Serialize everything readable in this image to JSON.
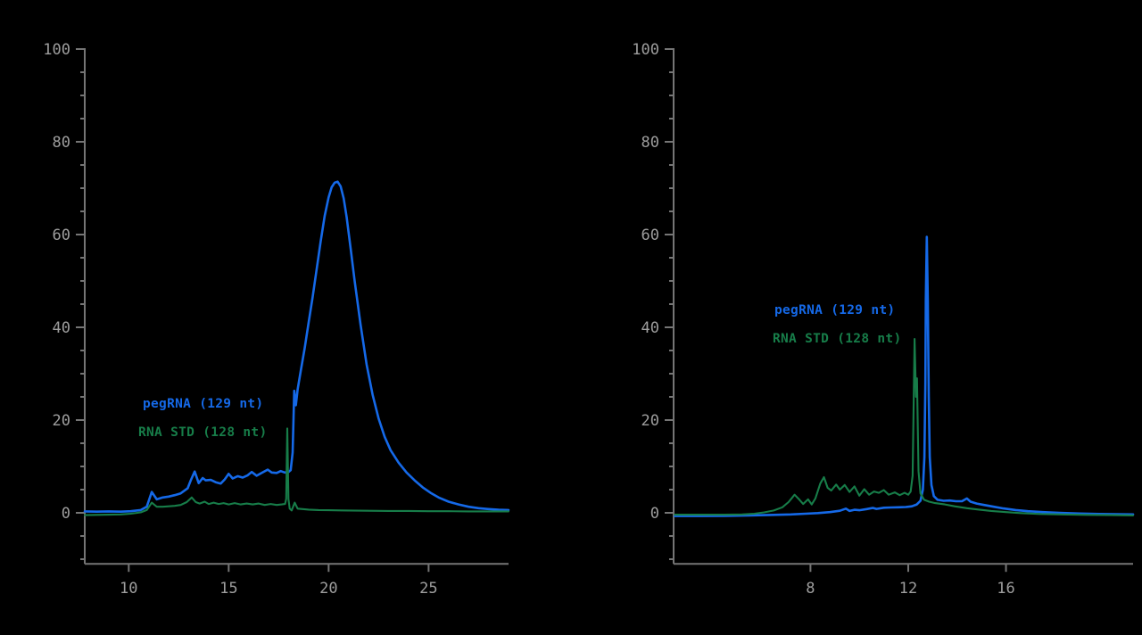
{
  "page": {
    "background": "#000000"
  },
  "colors": {
    "axis_line": "#757575",
    "tick_label": "#9e9e9e",
    "pegrna_blue": "#1569e8",
    "rnastd_green": "#177d49"
  },
  "chart_data": [
    {
      "type": "line",
      "title": "",
      "xlabel": "",
      "ylabel": "",
      "grid": false,
      "xlim": [
        7.8,
        29.0
      ],
      "ylim": [
        -11,
        100
      ],
      "x_ticks": [
        10,
        15,
        20,
        25
      ],
      "y_major_ticks": [
        0,
        20,
        40,
        60,
        80,
        100
      ],
      "y_minor_step": 5,
      "legend_position": "inside-left-middle",
      "legend": [
        {
          "label": "pegRNA (129 nt)",
          "color": "#1569e8"
        },
        {
          "label": "RNA STD (128 nt)",
          "color": "#177d49"
        }
      ],
      "series": [
        {
          "name": "pegRNA (129 nt)",
          "color": "#1569e8",
          "points": [
            [
              7.8,
              0.3
            ],
            [
              8.4,
              0.25
            ],
            [
              9.0,
              0.3
            ],
            [
              9.6,
              0.25
            ],
            [
              10.1,
              0.35
            ],
            [
              10.6,
              0.6
            ],
            [
              10.9,
              1.3
            ],
            [
              11.15,
              4.5
            ],
            [
              11.4,
              2.9
            ],
            [
              11.7,
              3.3
            ],
            [
              12.0,
              3.5
            ],
            [
              12.3,
              3.8
            ],
            [
              12.6,
              4.2
            ],
            [
              12.95,
              5.3
            ],
            [
              13.1,
              7.0
            ],
            [
              13.3,
              8.9
            ],
            [
              13.5,
              6.4
            ],
            [
              13.7,
              7.5
            ],
            [
              13.85,
              7.0
            ],
            [
              14.1,
              7.1
            ],
            [
              14.35,
              6.6
            ],
            [
              14.6,
              6.3
            ],
            [
              14.8,
              7.2
            ],
            [
              15.0,
              8.4
            ],
            [
              15.2,
              7.4
            ],
            [
              15.45,
              7.9
            ],
            [
              15.7,
              7.6
            ],
            [
              15.95,
              8.1
            ],
            [
              16.15,
              8.8
            ],
            [
              16.4,
              8.0
            ],
            [
              16.65,
              8.6
            ],
            [
              16.95,
              9.3
            ],
            [
              17.15,
              8.7
            ],
            [
              17.4,
              8.6
            ],
            [
              17.6,
              9.0
            ],
            [
              17.8,
              8.7
            ],
            [
              18.0,
              8.8
            ],
            [
              18.1,
              9.2
            ],
            [
              18.2,
              13
            ],
            [
              18.28,
              26.3
            ],
            [
              18.36,
              23.2
            ],
            [
              18.45,
              26.6
            ],
            [
              18.6,
              30.5
            ],
            [
              18.8,
              35.5
            ],
            [
              19.0,
              41
            ],
            [
              19.2,
              46.5
            ],
            [
              19.4,
              52.5
            ],
            [
              19.6,
              58.5
            ],
            [
              19.8,
              64
            ],
            [
              20.0,
              68
            ],
            [
              20.15,
              70.2
            ],
            [
              20.3,
              71.2
            ],
            [
              20.45,
              71.4
            ],
            [
              20.6,
              70.4
            ],
            [
              20.75,
              67.8
            ],
            [
              20.9,
              63.8
            ],
            [
              21.1,
              57
            ],
            [
              21.3,
              50
            ],
            [
              21.6,
              40.5
            ],
            [
              21.9,
              32
            ],
            [
              22.2,
              25.5
            ],
            [
              22.5,
              20.3
            ],
            [
              22.8,
              16.4
            ],
            [
              23.1,
              13.5
            ],
            [
              23.5,
              10.8
            ],
            [
              23.9,
              8.7
            ],
            [
              24.3,
              7.0
            ],
            [
              24.7,
              5.5
            ],
            [
              25.1,
              4.3
            ],
            [
              25.5,
              3.3
            ],
            [
              26.0,
              2.4
            ],
            [
              26.5,
              1.8
            ],
            [
              27.0,
              1.3
            ],
            [
              27.5,
              1.0
            ],
            [
              28.0,
              0.8
            ],
            [
              28.5,
              0.65
            ],
            [
              29.0,
              0.6
            ]
          ]
        },
        {
          "name": "RNA STD (128 nt)",
          "color": "#177d49",
          "points": [
            [
              7.8,
              -0.5
            ],
            [
              8.4,
              -0.45
            ],
            [
              9.0,
              -0.4
            ],
            [
              9.6,
              -0.35
            ],
            [
              10.1,
              -0.2
            ],
            [
              10.6,
              0.1
            ],
            [
              10.9,
              0.6
            ],
            [
              11.15,
              2.2
            ],
            [
              11.4,
              1.3
            ],
            [
              11.7,
              1.3
            ],
            [
              12.0,
              1.4
            ],
            [
              12.3,
              1.5
            ],
            [
              12.6,
              1.7
            ],
            [
              12.9,
              2.3
            ],
            [
              13.15,
              3.3
            ],
            [
              13.35,
              2.3
            ],
            [
              13.55,
              2.0
            ],
            [
              13.8,
              2.4
            ],
            [
              14.0,
              1.9
            ],
            [
              14.25,
              2.2
            ],
            [
              14.5,
              1.9
            ],
            [
              14.75,
              2.1
            ],
            [
              15.0,
              1.8
            ],
            [
              15.3,
              2.1
            ],
            [
              15.6,
              1.8
            ],
            [
              15.9,
              2.0
            ],
            [
              16.2,
              1.8
            ],
            [
              16.5,
              2.0
            ],
            [
              16.8,
              1.7
            ],
            [
              17.1,
              1.9
            ],
            [
              17.4,
              1.7
            ],
            [
              17.65,
              1.8
            ],
            [
              17.82,
              1.9
            ],
            [
              17.88,
              3.0
            ],
            [
              17.93,
              18.2
            ],
            [
              17.99,
              3.0
            ],
            [
              18.05,
              0.9
            ],
            [
              18.15,
              0.5
            ],
            [
              18.3,
              2.2
            ],
            [
              18.45,
              0.9
            ],
            [
              18.7,
              0.8
            ],
            [
              19.0,
              0.7
            ],
            [
              19.5,
              0.6
            ],
            [
              20.0,
              0.55
            ],
            [
              21.0,
              0.5
            ],
            [
              22.0,
              0.45
            ],
            [
              23.0,
              0.4
            ],
            [
              24.0,
              0.4
            ],
            [
              25.0,
              0.35
            ],
            [
              26.0,
              0.35
            ],
            [
              27.0,
              0.3
            ],
            [
              28.0,
              0.3
            ],
            [
              29.0,
              0.3
            ]
          ]
        }
      ]
    },
    {
      "type": "line",
      "title": "",
      "xlabel": "",
      "ylabel": "",
      "grid": false,
      "xlim": [
        2.4,
        21.2
      ],
      "ylim": [
        -11,
        100
      ],
      "x_ticks": [
        8,
        12,
        16
      ],
      "y_major_ticks": [
        0,
        20,
        40,
        60,
        80,
        100
      ],
      "y_minor_step": 5,
      "legend_position": "inside-left-upper",
      "legend": [
        {
          "label": "pegRNA (129 nt)",
          "color": "#1569e8"
        },
        {
          "label": "RNA STD (128 nt)",
          "color": "#177d49"
        }
      ],
      "series": [
        {
          "name": "pegRNA (129 nt)",
          "color": "#1569e8",
          "points": [
            [
              2.45,
              -0.7
            ],
            [
              3.5,
              -0.7
            ],
            [
              4.5,
              -0.65
            ],
            [
              5.5,
              -0.55
            ],
            [
              6.5,
              -0.45
            ],
            [
              7.2,
              -0.35
            ],
            [
              7.8,
              -0.2
            ],
            [
              8.3,
              -0.05
            ],
            [
              8.8,
              0.15
            ],
            [
              9.2,
              0.45
            ],
            [
              9.45,
              0.9
            ],
            [
              9.6,
              0.4
            ],
            [
              9.8,
              0.65
            ],
            [
              10.0,
              0.55
            ],
            [
              10.3,
              0.8
            ],
            [
              10.55,
              1.05
            ],
            [
              10.7,
              0.85
            ],
            [
              11.0,
              1.1
            ],
            [
              11.3,
              1.15
            ],
            [
              11.6,
              1.2
            ],
            [
              11.9,
              1.25
            ],
            [
              12.15,
              1.4
            ],
            [
              12.35,
              1.8
            ],
            [
              12.5,
              2.6
            ],
            [
              12.6,
              5.0
            ],
            [
              12.66,
              12
            ],
            [
              12.7,
              28
            ],
            [
              12.72,
              46
            ],
            [
              12.76,
              59.5
            ],
            [
              12.8,
              46
            ],
            [
              12.84,
              25
            ],
            [
              12.88,
              12
            ],
            [
              12.95,
              6.0
            ],
            [
              13.05,
              3.6
            ],
            [
              13.2,
              2.8
            ],
            [
              13.45,
              2.6
            ],
            [
              13.7,
              2.65
            ],
            [
              13.95,
              2.5
            ],
            [
              14.2,
              2.5
            ],
            [
              14.4,
              3.1
            ],
            [
              14.55,
              2.4
            ],
            [
              14.8,
              2.0
            ],
            [
              15.1,
              1.7
            ],
            [
              15.5,
              1.3
            ],
            [
              15.9,
              0.95
            ],
            [
              16.4,
              0.6
            ],
            [
              16.9,
              0.35
            ],
            [
              17.5,
              0.15
            ],
            [
              18.2,
              0.0
            ],
            [
              19.0,
              -0.15
            ],
            [
              19.8,
              -0.25
            ],
            [
              20.5,
              -0.3
            ],
            [
              21.2,
              -0.35
            ]
          ]
        },
        {
          "name": "RNA STD (128 nt)",
          "color": "#177d49",
          "points": [
            [
              2.45,
              -0.4
            ],
            [
              3.5,
              -0.4
            ],
            [
              4.5,
              -0.4
            ],
            [
              5.2,
              -0.35
            ],
            [
              5.7,
              -0.2
            ],
            [
              6.1,
              0.1
            ],
            [
              6.5,
              0.5
            ],
            [
              6.85,
              1.2
            ],
            [
              7.1,
              2.3
            ],
            [
              7.35,
              3.9
            ],
            [
              7.55,
              2.8
            ],
            [
              7.7,
              1.9
            ],
            [
              7.9,
              2.9
            ],
            [
              8.05,
              1.8
            ],
            [
              8.2,
              3.1
            ],
            [
              8.4,
              6.3
            ],
            [
              8.55,
              7.7
            ],
            [
              8.7,
              5.4
            ],
            [
              8.85,
              4.8
            ],
            [
              9.05,
              6.1
            ],
            [
              9.2,
              5.0
            ],
            [
              9.4,
              6.0
            ],
            [
              9.6,
              4.5
            ],
            [
              9.8,
              5.7
            ],
            [
              10.0,
              3.7
            ],
            [
              10.2,
              5.1
            ],
            [
              10.4,
              3.9
            ],
            [
              10.6,
              4.6
            ],
            [
              10.8,
              4.3
            ],
            [
              11.0,
              4.9
            ],
            [
              11.2,
              3.9
            ],
            [
              11.45,
              4.4
            ],
            [
              11.65,
              3.8
            ],
            [
              11.85,
              4.3
            ],
            [
              12.0,
              3.9
            ],
            [
              12.1,
              4.6
            ],
            [
              12.18,
              8.0
            ],
            [
              12.26,
              37.5
            ],
            [
              12.32,
              25
            ],
            [
              12.36,
              29
            ],
            [
              12.42,
              9.0
            ],
            [
              12.5,
              4.2
            ],
            [
              12.65,
              2.8
            ],
            [
              12.85,
              2.4
            ],
            [
              13.1,
              2.1
            ],
            [
              13.5,
              1.8
            ],
            [
              13.9,
              1.4
            ],
            [
              14.4,
              1.0
            ],
            [
              14.9,
              0.7
            ],
            [
              15.4,
              0.4
            ],
            [
              16.0,
              0.15
            ],
            [
              16.6,
              -0.05
            ],
            [
              17.4,
              -0.25
            ],
            [
              18.3,
              -0.35
            ],
            [
              19.3,
              -0.45
            ],
            [
              20.3,
              -0.5
            ],
            [
              21.2,
              -0.55
            ]
          ]
        }
      ]
    }
  ]
}
